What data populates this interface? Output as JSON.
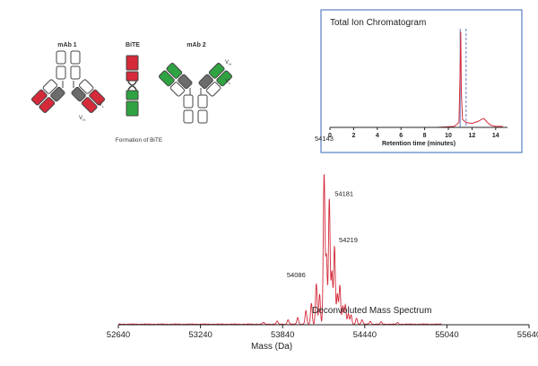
{
  "diagram": {
    "mab1_label": "mAb 1",
    "bite_label": "BiTE",
    "mab2_label": "mAb 2",
    "caption": "Formation of BiTE",
    "vl_label": "V",
    "vl_sub": "L",
    "vh_label": "V",
    "vh_sub": "H",
    "colors": {
      "red": "#d42a3a",
      "green": "#2fa341",
      "grey": "#6c6c6c",
      "outline": "#444444"
    }
  },
  "chart_data": [
    {
      "type": "line",
      "title": "Total Ion Chromatogram",
      "xlabel": "Retention time (minutes)",
      "ylabel": "",
      "xlim": [
        0,
        15
      ],
      "x_ticks": [
        "0",
        "2",
        "4",
        "6",
        "8",
        "10",
        "12",
        "14"
      ],
      "markers": [
        {
          "x": 11.0,
          "color": "#5b7fc4"
        },
        {
          "x": 11.5,
          "color": "#5b7fc4"
        }
      ],
      "line_color": "#d42a3a",
      "border_color": "#5b7fc4",
      "series": [
        {
          "x": [
            0,
            9.0,
            10.5,
            10.9,
            11.0,
            11.05,
            11.1,
            11.2,
            11.5,
            12.0,
            12.5,
            12.8,
            13.0,
            13.3,
            13.6,
            14.0,
            14.6
          ],
          "values": [
            0,
            0,
            0.01,
            0.05,
            0.6,
            0.97,
            0.35,
            0.08,
            0.05,
            0.04,
            0.06,
            0.08,
            0.09,
            0.05,
            0.02,
            0.01,
            0.01
          ]
        }
      ]
    },
    {
      "type": "line",
      "title": "Deconvoluted Mass Spectrum",
      "xlabel": "Mass (Da)",
      "ylabel": "",
      "xlim": [
        52640,
        55640
      ],
      "x_ticks": [
        "52640",
        "53240",
        "53840",
        "54440",
        "55040",
        "55640"
      ],
      "line_color": "#d42a3a",
      "peak_labels": [
        {
          "x": 54143,
          "y": 1.0,
          "label": "54143"
        },
        {
          "x": 54181,
          "y": 0.84,
          "label": "54181"
        },
        {
          "x": 54219,
          "y": 0.55,
          "label": "54219"
        },
        {
          "x": 54086,
          "y": 0.31,
          "label": "54086"
        }
      ],
      "series": [
        {
          "peaks": [
            {
              "x": 53700,
              "h": 0.012
            },
            {
              "x": 53800,
              "h": 0.02
            },
            {
              "x": 53880,
              "h": 0.03
            },
            {
              "x": 53950,
              "h": 0.045
            },
            {
              "x": 54010,
              "h": 0.09
            },
            {
              "x": 54050,
              "h": 0.14
            },
            {
              "x": 54086,
              "h": 0.27
            },
            {
              "x": 54110,
              "h": 0.2
            },
            {
              "x": 54143,
              "h": 1.0
            },
            {
              "x": 54160,
              "h": 0.45
            },
            {
              "x": 54181,
              "h": 0.84
            },
            {
              "x": 54200,
              "h": 0.35
            },
            {
              "x": 54219,
              "h": 0.52
            },
            {
              "x": 54240,
              "h": 0.2
            },
            {
              "x": 54258,
              "h": 0.26
            },
            {
              "x": 54280,
              "h": 0.12
            },
            {
              "x": 54298,
              "h": 0.13
            },
            {
              "x": 54320,
              "h": 0.07
            },
            {
              "x": 54340,
              "h": 0.06
            },
            {
              "x": 54380,
              "h": 0.04
            },
            {
              "x": 54420,
              "h": 0.03
            },
            {
              "x": 54480,
              "h": 0.02
            },
            {
              "x": 54560,
              "h": 0.015
            },
            {
              "x": 54680,
              "h": 0.01
            }
          ]
        }
      ]
    }
  ]
}
